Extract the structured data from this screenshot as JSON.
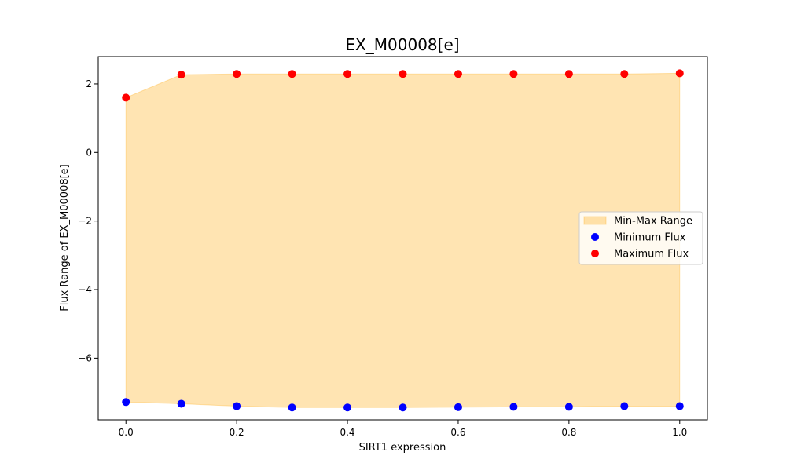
{
  "chart_data": {
    "type": "area",
    "title": "EX_M00008[e]",
    "xlabel": "SIRT1 expression",
    "ylabel": "Flux Range of EX_M00008[e]",
    "xlim": [
      -0.05,
      1.05
    ],
    "ylim": [
      -7.8,
      2.8
    ],
    "x_ticks": [
      0.0,
      0.2,
      0.4,
      0.6,
      0.8,
      1.0
    ],
    "x_tick_labels": [
      "0.0",
      "0.2",
      "0.4",
      "0.6",
      "0.8",
      "1.0"
    ],
    "y_ticks": [
      -6,
      -4,
      -2,
      0,
      2
    ],
    "y_tick_labels": [
      "−6",
      "−4",
      "−2",
      "0",
      "2"
    ],
    "grid": false,
    "legend_position": "center-right",
    "x": [
      0.0,
      0.1,
      0.2,
      0.3,
      0.4,
      0.5,
      0.6,
      0.7,
      0.8,
      0.9,
      1.0
    ],
    "series": [
      {
        "name": "Min-Max Range",
        "kind": "fill_between",
        "color": "#ffa500",
        "opacity": 0.3,
        "lower": [
          -7.28,
          -7.33,
          -7.4,
          -7.44,
          -7.44,
          -7.44,
          -7.43,
          -7.42,
          -7.42,
          -7.4,
          -7.4
        ],
        "upper": [
          1.6,
          2.27,
          2.29,
          2.29,
          2.29,
          2.29,
          2.29,
          2.29,
          2.29,
          2.29,
          2.31
        ]
      },
      {
        "name": "Minimum Flux",
        "kind": "scatter",
        "color": "#0000ff",
        "values": [
          -7.28,
          -7.33,
          -7.4,
          -7.44,
          -7.44,
          -7.44,
          -7.43,
          -7.42,
          -7.42,
          -7.4,
          -7.4
        ]
      },
      {
        "name": "Maximum Flux",
        "kind": "scatter",
        "color": "#ff0000",
        "values": [
          1.6,
          2.27,
          2.29,
          2.29,
          2.29,
          2.29,
          2.29,
          2.29,
          2.29,
          2.29,
          2.31
        ]
      }
    ]
  }
}
